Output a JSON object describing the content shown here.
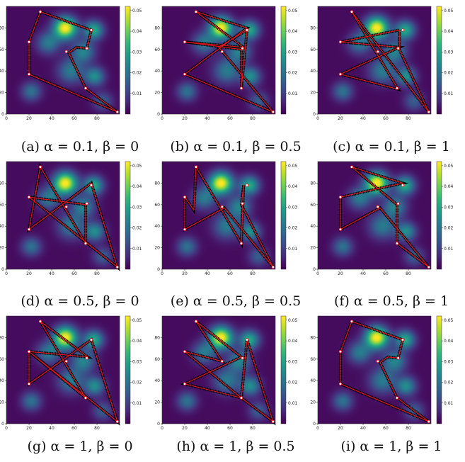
{
  "colors": {
    "background": "#440154",
    "path": "#e8141a",
    "grid_cells": "#000000",
    "city_marker": "#ffffff",
    "viridis": [
      "#440154",
      "#482878",
      "#3e4a89",
      "#31688e",
      "#26828e",
      "#1f9e89",
      "#35b779",
      "#6ece58",
      "#b5de2b",
      "#fde725"
    ]
  },
  "chart_data": {
    "type": "heatmap",
    "panel_count": 9,
    "xlim": [
      0,
      100
    ],
    "ylim": [
      0,
      100
    ],
    "x_ticks": [
      0,
      20,
      40,
      60,
      80
    ],
    "y_ticks": [
      0,
      20,
      40,
      60,
      80
    ],
    "colorbar": {
      "min": 0,
      "max": 0.052,
      "ticks": [
        "0.01",
        "0.02",
        "0.03",
        "0.04",
        "0.05"
      ],
      "tick_values": [
        0.01,
        0.02,
        0.03,
        0.04,
        0.05
      ]
    },
    "cities": [
      [
        30,
        95
      ],
      [
        20,
        67
      ],
      [
        20,
        37
      ],
      [
        53,
        58
      ],
      [
        71,
        61
      ],
      [
        75,
        78
      ],
      [
        70,
        24
      ],
      [
        98,
        2
      ]
    ],
    "hotspots": [
      {
        "x": 52,
        "y": 80,
        "peak": 0.052,
        "spread": 7
      },
      {
        "x": 77,
        "y": 78,
        "peak": 0.03,
        "spread": 6
      },
      {
        "x": 37,
        "y": 66,
        "peak": 0.02,
        "spread": 7
      },
      {
        "x": 68,
        "y": 58,
        "peak": 0.022,
        "spread": 7
      },
      {
        "x": 57,
        "y": 40,
        "peak": 0.02,
        "spread": 8
      },
      {
        "x": 78,
        "y": 35,
        "peak": 0.024,
        "spread": 6
      },
      {
        "x": 22,
        "y": 21,
        "peak": 0.018,
        "spread": 6
      },
      {
        "x": 85,
        "y": 12,
        "peak": 0.014,
        "spread": 6
      }
    ],
    "panels": [
      {
        "caption": "(a) α = 0.1, β = 0",
        "route": [
          [
            30,
            95
          ],
          [
            75,
            78
          ],
          [
            71,
            61
          ],
          [
            62,
            62
          ],
          [
            55,
            57
          ],
          [
            70,
            24
          ],
          [
            98,
            2
          ],
          [
            20,
            37
          ],
          [
            20,
            67
          ],
          [
            30,
            95
          ]
        ]
      },
      {
        "caption": "(b) α = 0.1, β = 0.5",
        "route": [
          [
            20,
            67
          ],
          [
            70,
            60
          ],
          [
            70,
            24
          ],
          [
            75,
            78
          ],
          [
            50,
            62
          ],
          [
            98,
            2
          ],
          [
            20,
            37
          ],
          [
            75,
            80
          ],
          [
            30,
            95
          ],
          [
            72,
            62
          ],
          [
            20,
            67
          ]
        ]
      },
      {
        "caption": "(c) α = 0.1, β = 1",
        "route": [
          [
            20,
            67
          ],
          [
            72,
            78
          ],
          [
            72,
            60
          ],
          [
            98,
            2
          ],
          [
            30,
            95
          ],
          [
            71,
            23
          ],
          [
            20,
            37
          ],
          [
            72,
            62
          ],
          [
            20,
            67
          ]
        ]
      },
      {
        "caption": "(d) α = 0.5, β = 0",
        "route": [
          [
            20,
            67
          ],
          [
            70,
            60
          ],
          [
            70,
            24
          ],
          [
            30,
            95
          ],
          [
            20,
            37
          ],
          [
            75,
            80
          ],
          [
            98,
            2
          ],
          [
            20,
            67
          ]
        ]
      },
      {
        "caption": "(e) α = 0.5, β = 0.5",
        "route": [
          [
            30,
            95
          ],
          [
            70,
            24
          ],
          [
            72,
            78
          ],
          [
            70,
            60
          ],
          [
            98,
            2
          ],
          [
            55,
            57
          ],
          [
            20,
            37
          ],
          [
            20,
            67
          ],
          [
            28,
            55
          ],
          [
            30,
            95
          ]
        ]
      },
      {
        "caption": "(f) α = 0.5, β = 1",
        "route": [
          [
            20,
            67
          ],
          [
            75,
            80
          ],
          [
            30,
            95
          ],
          [
            70,
            60
          ],
          [
            70,
            24
          ],
          [
            98,
            2
          ],
          [
            55,
            57
          ],
          [
            20,
            37
          ],
          [
            20,
            67
          ]
        ]
      },
      {
        "caption": "(g) α = 1, β = 0",
        "route": [
          [
            20,
            67
          ],
          [
            72,
            62
          ],
          [
            30,
            95
          ],
          [
            70,
            24
          ],
          [
            20,
            67
          ],
          [
            98,
            2
          ],
          [
            75,
            78
          ],
          [
            20,
            37
          ],
          [
            20,
            67
          ]
        ]
      },
      {
        "caption": "(h) α = 1, β = 0.5",
        "route": [
          [
            30,
            95
          ],
          [
            53,
            58
          ],
          [
            20,
            67
          ],
          [
            70,
            24
          ],
          [
            75,
            78
          ],
          [
            98,
            2
          ],
          [
            70,
            24
          ],
          [
            20,
            37
          ],
          [
            70,
            62
          ],
          [
            30,
            95
          ]
        ]
      },
      {
        "caption": "(i) α = 1, β = 1",
        "route": [
          [
            30,
            95
          ],
          [
            75,
            78
          ],
          [
            71,
            61
          ],
          [
            62,
            62
          ],
          [
            55,
            57
          ],
          [
            70,
            24
          ],
          [
            98,
            2
          ],
          [
            20,
            37
          ],
          [
            20,
            67
          ],
          [
            30,
            95
          ]
        ]
      }
    ]
  }
}
